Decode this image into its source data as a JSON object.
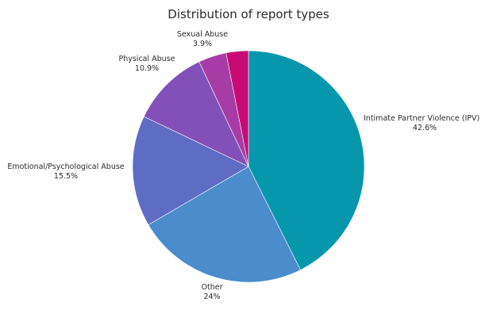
{
  "colors": {
    "background": "#ffffff",
    "text": "#2b2b2b",
    "slice_border": "#ffffff"
  },
  "chart_data": {
    "type": "pie",
    "title": "Distribution of report types",
    "start": "12 o'clock",
    "direction": "clockwise",
    "legend": "none",
    "slices": [
      {
        "label": "Intimate Partner Violence (IPV)",
        "value": 42.6,
        "value_label": "42.6%",
        "color": "#0797ad"
      },
      {
        "label": "Other",
        "value": 24.0,
        "value_label": "24%",
        "color": "#4a8ccc"
      },
      {
        "label": "Emotional/Psychological Abuse",
        "value": 15.5,
        "value_label": "15.5%",
        "color": "#5e6cc4"
      },
      {
        "label": "Physical Abuse",
        "value": 10.9,
        "value_label": "10.9%",
        "color": "#8250b8"
      },
      {
        "label": "Sexual Abuse",
        "value": 3.9,
        "value_label": "3.9%",
        "color": "#a73ca7"
      },
      {
        "label": "",
        "value": 3.1,
        "value_label": "",
        "color": "#c80a74"
      }
    ]
  }
}
